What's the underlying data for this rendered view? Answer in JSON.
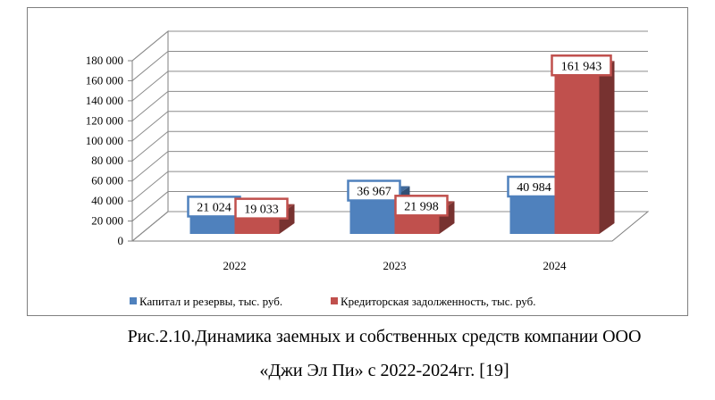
{
  "chart_data": {
    "type": "bar",
    "categories": [
      "2022",
      "2023",
      "2024"
    ],
    "series": [
      {
        "name": "Капитал и резервы, тыс. руб.",
        "values": [
          21024,
          36967,
          40984
        ],
        "labels": [
          "21 024",
          "36 967",
          "40 984"
        ],
        "color": "#4f81bd"
      },
      {
        "name": "Кредиторская задолженность,  тыс. руб.",
        "values": [
          19033,
          21998,
          161943
        ],
        "labels": [
          "19 033",
          "21 998",
          "161 943"
        ],
        "color": "#c0504d"
      }
    ],
    "ylim": [
      0,
      180000
    ],
    "yticks": [
      0,
      20000,
      40000,
      60000,
      80000,
      100000,
      120000,
      140000,
      160000,
      180000
    ],
    "ytick_labels": [
      "0",
      "20 000",
      "40 000",
      "60 000",
      "80 000",
      "100 000",
      "120 000",
      "140 000",
      "160 000",
      "180 000"
    ],
    "grid": true,
    "legend_position": "bottom"
  },
  "caption": {
    "line1": "Рис.2.10.Динамика заемных и собственных средств компании ООО",
    "line2": "«Джи Эл Пи» с 2022-2024гг. [19]"
  }
}
